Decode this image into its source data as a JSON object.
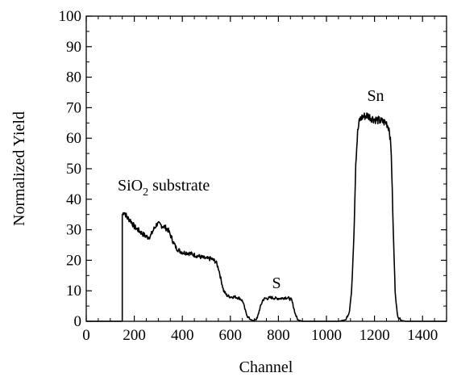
{
  "chart_data": {
    "type": "line",
    "title": "",
    "xlabel": "Channel",
    "ylabel": "Normalized Yield",
    "xlim": [
      0,
      1500
    ],
    "ylim": [
      0,
      100
    ],
    "x_ticks": [
      0,
      200,
      400,
      600,
      800,
      1000,
      1200,
      1400
    ],
    "y_ticks": [
      0,
      10,
      20,
      30,
      40,
      50,
      60,
      70,
      80,
      90,
      100
    ],
    "grid": false,
    "legend": "none",
    "line_color": "#000000",
    "series": [
      {
        "x": [
          0,
          150,
          151,
          158,
          170,
          185,
          200,
          215,
          230,
          245,
          258,
          268,
          280,
          295,
          310,
          325,
          340,
          352,
          362,
          375,
          390,
          405,
          420,
          440,
          460,
          480,
          500,
          520,
          540,
          552,
          560,
          572,
          585,
          600,
          620,
          640,
          652,
          662,
          672,
          685,
          698,
          712,
          722,
          735,
          745,
          755,
          770,
          790,
          810,
          830,
          845,
          855,
          862,
          870,
          880,
          900,
          950,
          1000,
          1050,
          1080,
          1095,
          1105,
          1115,
          1122,
          1130,
          1138,
          1150,
          1170,
          1190,
          1210,
          1230,
          1250,
          1262,
          1270,
          1278,
          1286,
          1295,
          1310,
          1330,
          1400,
          1500
        ],
        "y": [
          0,
          0,
          35,
          36,
          34,
          33,
          31,
          30,
          29,
          28,
          27.5,
          28,
          30,
          32,
          31.5,
          31,
          30,
          28,
          26,
          24,
          23,
          22.5,
          22.5,
          22,
          21.5,
          21,
          20.5,
          20.5,
          19.5,
          17,
          14,
          10,
          8.5,
          8,
          8,
          7.5,
          6.5,
          3.5,
          1.5,
          0.5,
          0.2,
          1,
          4,
          7,
          7.5,
          7.5,
          7.8,
          7.5,
          7.5,
          7.8,
          7.5,
          7,
          5,
          2.5,
          0.5,
          0,
          0,
          0,
          0,
          0.5,
          3,
          10,
          30,
          52,
          62,
          66,
          67,
          67.5,
          66.5,
          66,
          65.5,
          65,
          63,
          55,
          30,
          10,
          2,
          0.3,
          0,
          0,
          0
        ]
      }
    ],
    "annotations": [
      {
        "text": "SiO",
        "subscript": "2",
        "suffix": " substrate"
      },
      {
        "text": "S"
      },
      {
        "text": "Sn"
      }
    ]
  }
}
